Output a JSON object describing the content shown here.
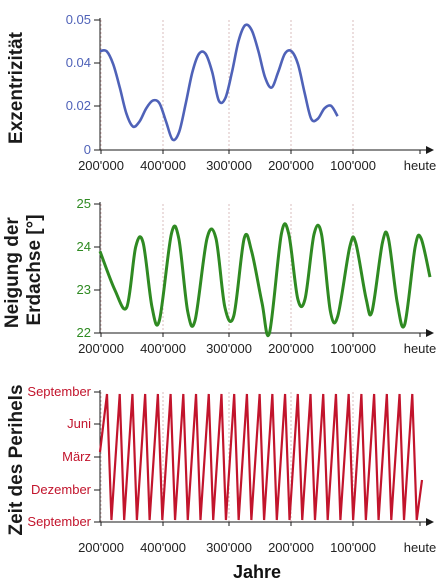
{
  "chart_data": [
    {
      "type": "line",
      "ylabel": "Exzentrizität",
      "color": "#4f62b8",
      "categories": [
        "200'000",
        "400'000",
        "300'000",
        "200'000",
        "100'000",
        "heute"
      ],
      "yticks": [
        "0.05",
        "0.04",
        "0.02",
        "0"
      ],
      "ylim": [
        0,
        0.05
      ],
      "grid": "vertical-dashed",
      "series": [
        {
          "values": [
            [
              0,
              0.038
            ],
            [
              0.02,
              0.038
            ],
            [
              0.04,
              0.033
            ],
            [
              0.06,
              0.024
            ],
            [
              0.08,
              0.014
            ],
            [
              0.1,
              0.009
            ],
            [
              0.12,
              0.011
            ],
            [
              0.14,
              0.016
            ],
            [
              0.16,
              0.019
            ],
            [
              0.18,
              0.018
            ],
            [
              0.2,
              0.011
            ],
            [
              0.22,
              0.004
            ],
            [
              0.24,
              0.007
            ],
            [
              0.26,
              0.018
            ],
            [
              0.28,
              0.03
            ],
            [
              0.3,
              0.037
            ],
            [
              0.32,
              0.037
            ],
            [
              0.34,
              0.03
            ],
            [
              0.36,
              0.019
            ],
            [
              0.38,
              0.02
            ],
            [
              0.4,
              0.03
            ],
            [
              0.42,
              0.042
            ],
            [
              0.44,
              0.048
            ],
            [
              0.46,
              0.046
            ],
            [
              0.48,
              0.038
            ],
            [
              0.5,
              0.028
            ],
            [
              0.52,
              0.024
            ],
            [
              0.54,
              0.03
            ],
            [
              0.56,
              0.037
            ],
            [
              0.58,
              0.038
            ],
            [
              0.6,
              0.033
            ],
            [
              0.62,
              0.022
            ],
            [
              0.64,
              0.012
            ],
            [
              0.66,
              0.012
            ],
            [
              0.68,
              0.016
            ],
            [
              0.7,
              0.017
            ],
            [
              0.72,
              0.013
            ]
          ]
        }
      ]
    },
    {
      "type": "line",
      "ylabel": "Neigung der Erdachse [°]",
      "color": "#2f8a22",
      "categories": [
        "200'000",
        "400'000",
        "300'000",
        "200'000",
        "100'000",
        "heute"
      ],
      "yticks": [
        "25",
        "24",
        "23",
        "22"
      ],
      "ylim": [
        22,
        25
      ],
      "grid": "vertical-dashed",
      "series": [
        {
          "values": [
            [
              0,
              23.9
            ],
            [
              0.05,
              23.0
            ],
            [
              0.09,
              22.6
            ],
            [
              0.12,
              24.0
            ],
            [
              0.145,
              24.1
            ],
            [
              0.175,
              22.6
            ],
            [
              0.2,
              22.3
            ],
            [
              0.24,
              24.3
            ],
            [
              0.265,
              24.2
            ],
            [
              0.295,
              22.5
            ],
            [
              0.32,
              22.3
            ],
            [
              0.36,
              24.2
            ],
            [
              0.39,
              24.2
            ],
            [
              0.42,
              22.6
            ],
            [
              0.45,
              22.4
            ],
            [
              0.485,
              24.2
            ],
            [
              0.51,
              23.9
            ],
            [
              0.545,
              22.7
            ],
            [
              0.57,
              22.0
            ],
            [
              0.61,
              24.3
            ],
            [
              0.635,
              24.3
            ],
            [
              0.665,
              22.8
            ],
            [
              0.69,
              22.8
            ],
            [
              0.72,
              24.3
            ],
            [
              0.745,
              24.3
            ],
            [
              0.775,
              22.5
            ],
            [
              0.8,
              22.4
            ],
            [
              0.84,
              24.0
            ],
            [
              0.86,
              24.1
            ],
            [
              0.895,
              22.8
            ],
            [
              0.915,
              22.5
            ],
            [
              0.95,
              24.1
            ],
            [
              0.97,
              24.2
            ],
            [
              1.0,
              22.7
            ],
            [
              1.025,
              22.2
            ],
            [
              1.06,
              24.0
            ],
            [
              1.08,
              24.2
            ],
            [
              1.11,
              23.3
            ]
          ]
        }
      ]
    },
    {
      "type": "line",
      "ylabel": "Zeit des Perihels",
      "color": "#c2142c",
      "categories": [
        "200'000",
        "400'000",
        "300'000",
        "200'000",
        "100'000",
        "heute"
      ],
      "xlabel": "Jahre",
      "yticks": [
        "September",
        "Juni",
        "März",
        "Dezember",
        "September"
      ],
      "ylim": [
        0,
        12
      ],
      "grid": "vertical-dashed",
      "cycles": 25
    }
  ]
}
